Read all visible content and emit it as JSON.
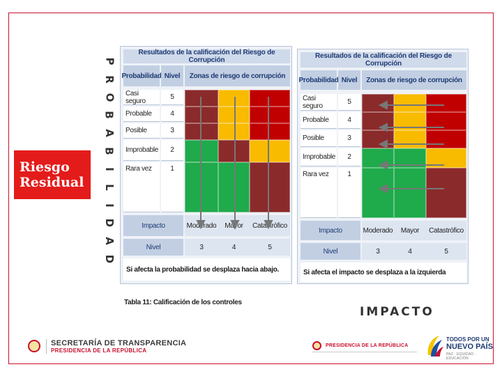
{
  "residual_label": "Riesgo Residual",
  "probabilidad_letters": [
    "P",
    "R",
    "O",
    "B",
    "A",
    "B",
    "I",
    "L",
    "I",
    "D",
    "A",
    "D"
  ],
  "left_matrix": {
    "title": "Resultados de la calificación del Riesgo de Corrupción",
    "headers": {
      "prob": "Probabilidad",
      "nivel": "Nivel",
      "zonas": "Zonas de riesgo de corrupción"
    },
    "rows": [
      {
        "label": "Casi seguro",
        "level": "5"
      },
      {
        "label": "Probable",
        "level": "4"
      },
      {
        "label": "Posible",
        "level": "3"
      },
      {
        "label": "Improbable",
        "level": "2"
      },
      {
        "label": "Rara vez",
        "level": "1"
      }
    ],
    "impacto_label": "Impacto",
    "impacto_values": [
      "Moderado",
      "Mayor",
      "Catastrófico"
    ],
    "nivel_label": "Nivel",
    "nivel_values": [
      "3",
      "4",
      "5"
    ],
    "note": "Si afecta la probabilidad se desplaza hacia abajo."
  },
  "right_matrix": {
    "title": "Resultados de la calificación del Riesgo de Corrupción",
    "headers": {
      "prob": "Probabilidad",
      "nivel": "Nivel",
      "zonas": "Zonas de riesgo de corrupción"
    },
    "rows": [
      {
        "label": "Casi seguro",
        "level": "5"
      },
      {
        "label": "Probable",
        "level": "4"
      },
      {
        "label": "Posible",
        "level": "3"
      },
      {
        "label": "Improbable",
        "level": "2"
      },
      {
        "label": "Rara vez",
        "level": "1"
      }
    ],
    "impacto_label": "Impacto",
    "impacto_values": [
      "Moderado",
      "Mayor",
      "Catastrófico"
    ],
    "nivel_label": "Nivel",
    "nivel_values": [
      "3",
      "4",
      "5"
    ],
    "note": "Si afecta el impacto se desplaza a la izquierda"
  },
  "caption": "Tabla 11: Calificación de los controles",
  "impacto_axis_label": "IMPACTO",
  "footer": {
    "left_line1": "SECRETARÍA DE TRANSPARENCIA",
    "left_line2": "PRESIDENCIA DE LA REPÚBLICA",
    "middle": "PRESIDENCIA DE LA REPÚBLICA",
    "right_line1": "TODOS POR UN",
    "right_line2": "NUEVO PAÍS",
    "right_line3": "PAZ · EQUIDAD · EDUCACIÓN"
  },
  "colors": {
    "red": "#c00000",
    "dark_red": "#8b2a2a",
    "yellow": "#f8bb00",
    "green": "#1faa4b",
    "accent_red": "#e31b1b"
  }
}
